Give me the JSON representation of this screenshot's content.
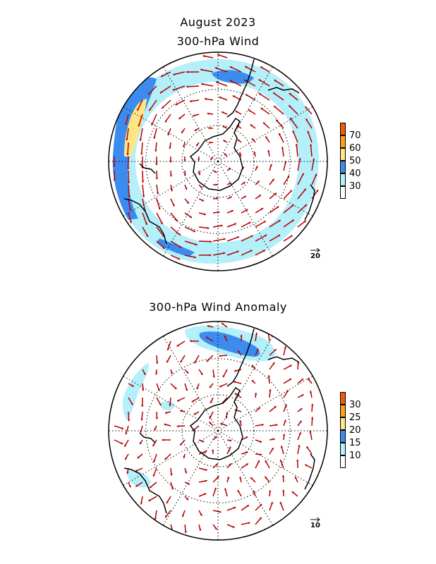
{
  "titles": {
    "main": "August 2023",
    "panel1": "300-hPa Wind",
    "panel2": "300-hPa Wind Anomaly"
  },
  "colors": {
    "white": "#ffffff",
    "light_blue": "#b4f0fa",
    "blue": "#3c8cf0",
    "yellow": "#ffe682",
    "orange": "#ffa014",
    "dark_orange": "#f05a0a",
    "arrow": "#b40000",
    "land": "#000000"
  },
  "panel1": {
    "colorbar_labels": [
      "70",
      "60",
      "50",
      "40",
      "30"
    ],
    "reference_vector": "20"
  },
  "panel2": {
    "colorbar_labels": [
      "30",
      "25",
      "20",
      "15",
      "10"
    ],
    "reference_vector": "10"
  }
}
